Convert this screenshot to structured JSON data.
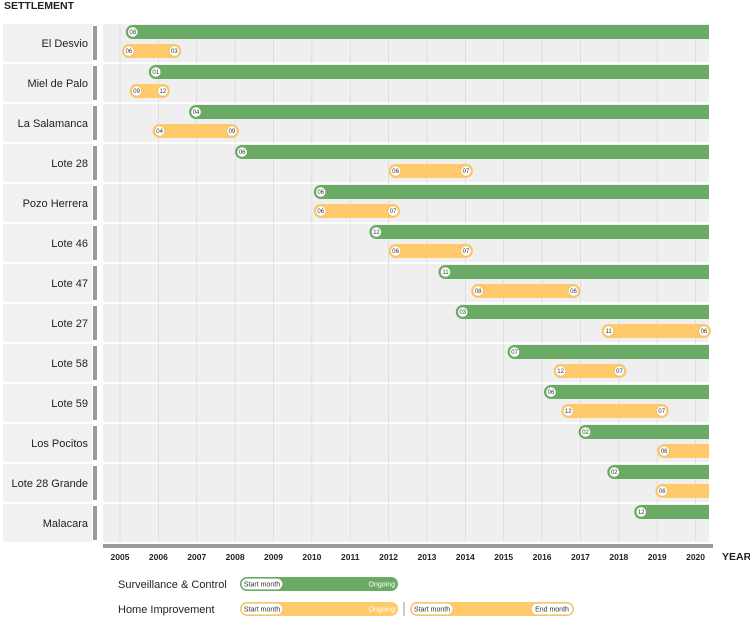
{
  "chart_data": {
    "type": "timeline",
    "row_axis_title": "SETTLEMENT",
    "x_axis_title": "YEAR",
    "years": [
      "2005",
      "2006",
      "2007",
      "2008",
      "2009",
      "2010",
      "2011",
      "2012",
      "2013",
      "2014",
      "2015",
      "2016",
      "2017",
      "2018",
      "2019",
      "2020"
    ],
    "x_range": [
      2005,
      2020.5
    ],
    "rows": [
      {
        "name": "El Desvio",
        "surveillance": {
          "start": 2005.15,
          "start_month": "08",
          "ongoing": true
        },
        "home": {
          "start": 2005.05,
          "end": 2006.6,
          "start_month": "06",
          "end_month": "03"
        }
      },
      {
        "name": "Miel de Palo",
        "surveillance": {
          "start": 2005.75,
          "start_month": "01",
          "ongoing": true
        },
        "home": {
          "start": 2005.25,
          "end": 2006.3,
          "start_month": "09",
          "end_month": "12"
        }
      },
      {
        "name": "La Salamanca",
        "surveillance": {
          "start": 2006.8,
          "start_month": "04",
          "ongoing": true
        },
        "home": {
          "start": 2005.85,
          "end": 2008.1,
          "start_month": "04",
          "end_month": "09"
        }
      },
      {
        "name": "Lote 28",
        "surveillance": {
          "start": 2008.0,
          "start_month": "06",
          "ongoing": true
        },
        "home": {
          "start": 2012.0,
          "end": 2014.2,
          "start_month": "06",
          "end_month": "07"
        }
      },
      {
        "name": "Pozo Herrera",
        "surveillance": {
          "start": 2010.05,
          "start_month": "06",
          "ongoing": true
        },
        "home": {
          "start": 2010.05,
          "end": 2012.3,
          "start_month": "06",
          "end_month": "07"
        }
      },
      {
        "name": "Lote 46",
        "surveillance": {
          "start": 2011.5,
          "start_month": "12",
          "ongoing": true
        },
        "home": {
          "start": 2012.0,
          "end": 2014.2,
          "start_month": "06",
          "end_month": "07"
        }
      },
      {
        "name": "Lote 47",
        "surveillance": {
          "start": 2013.3,
          "start_month": "11",
          "ongoing": true
        },
        "home": {
          "start": 2014.15,
          "end": 2017.0,
          "start_month": "08",
          "end_month": "06"
        }
      },
      {
        "name": "Lote 27",
        "surveillance": {
          "start": 2013.75,
          "start_month": "03",
          "ongoing": true
        },
        "home": {
          "start": 2017.55,
          "end": 2020.4,
          "start_month": "11",
          "end_month": "06"
        }
      },
      {
        "name": "Lote 58",
        "surveillance": {
          "start": 2015.1,
          "start_month": "07",
          "ongoing": true
        },
        "home": {
          "start": 2016.3,
          "end": 2018.2,
          "start_month": "12",
          "end_month": "07"
        }
      },
      {
        "name": "Lote 59",
        "surveillance": {
          "start": 2016.05,
          "start_month": "06",
          "ongoing": true
        },
        "home": {
          "start": 2016.5,
          "end": 2019.3,
          "start_month": "12",
          "end_month": "07"
        }
      },
      {
        "name": "Los Pocitos",
        "surveillance": {
          "start": 2016.95,
          "start_month": "02",
          "ongoing": true
        },
        "home": {
          "start": 2019.0,
          "start_month": "06",
          "ongoing": true
        }
      },
      {
        "name": "Lote 28 Grande",
        "surveillance": {
          "start": 2017.7,
          "start_month": "02",
          "ongoing": true
        },
        "home": {
          "start": 2018.95,
          "start_month": "06",
          "ongoing": true
        }
      },
      {
        "name": "Malacara",
        "surveillance": {
          "start": 2018.4,
          "start_month": "12",
          "ongoing": true
        },
        "home": null
      }
    ],
    "legend": {
      "surveillance_label": "Surveillance & Control",
      "home_label": "Home Improvement",
      "start_text": "Start month",
      "ongoing_text": "Ongoing",
      "end_text": "End month"
    },
    "colors": {
      "surveillance": "#6aaa64",
      "home": "#ffca6b",
      "home_border": "#f2c46b",
      "row_bg": "#efefef",
      "label_bg": "#f1f1f1",
      "axis": "#9a9a9a",
      "grid": "#d8d8d8"
    }
  }
}
